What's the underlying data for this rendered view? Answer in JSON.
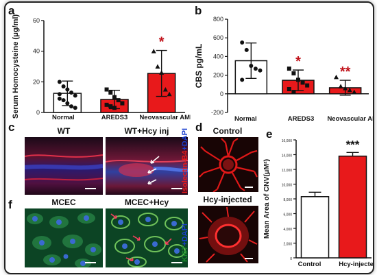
{
  "panels": {
    "a": "a",
    "b": "b",
    "c": "c",
    "d": "d",
    "e": "e",
    "f": "f"
  },
  "chart_data": [
    {
      "id": "a",
      "type": "bar",
      "ylabel": "Serum Homocysteine (μg/ml)",
      "ylim": [
        0,
        60
      ],
      "yticks": [
        0,
        20,
        40,
        60
      ],
      "categories": [
        "Normal",
        "AREDS3",
        "Neovascular AMD"
      ],
      "values": [
        12.5,
        8.5,
        25.5
      ],
      "errors": [
        8,
        6,
        15
      ],
      "colors": [
        "#ffffff",
        "#e8191b",
        "#e8191b"
      ],
      "significance": [
        "",
        "",
        "*"
      ],
      "points": [
        [
          20,
          17,
          15,
          13,
          11,
          9,
          8,
          6,
          4,
          3,
          12
        ],
        [
          15,
          13,
          10,
          8,
          6,
          5,
          4,
          3
        ],
        [
          40,
          30,
          26,
          15,
          12
        ]
      ]
    },
    {
      "id": "b",
      "type": "bar",
      "ylabel": "CBS pg/mL",
      "ylim": [
        -200,
        800
      ],
      "yticks": [
        -200,
        0,
        200,
        400,
        600,
        800
      ],
      "categories": [
        "Normal",
        "AREDS3",
        "Neovascular AMD"
      ],
      "values": [
        355,
        145,
        65
      ],
      "errors": [
        190,
        110,
        80
      ],
      "colors": [
        "#ffffff",
        "#e8191b",
        "#e8191b"
      ],
      "significance": [
        "",
        "*",
        "**"
      ],
      "points": [
        [
          550,
          470,
          300,
          270,
          250,
          150
        ],
        [
          270,
          220,
          150,
          120,
          90,
          50,
          20
        ],
        [
          180,
          80,
          60,
          40,
          20
        ]
      ]
    },
    {
      "id": "e",
      "type": "bar",
      "ylabel": "Mean Area of CNV(μM²)",
      "ylim": [
        0,
        16000
      ],
      "yticks": [
        "0",
        "2,000",
        "4,000",
        "6,000",
        "8,000",
        "10,000",
        "12,000",
        "14,000",
        "16,000"
      ],
      "yticks_num": [
        0,
        2000,
        4000,
        6000,
        8000,
        10000,
        12000,
        14000,
        16000
      ],
      "categories": [
        "Control",
        "Hcy-injected"
      ],
      "values": [
        8300,
        13800
      ],
      "errors": [
        600,
        500
      ],
      "colors": [
        "#ffffff",
        "#e8191b"
      ],
      "significance": [
        "",
        "***"
      ]
    }
  ],
  "micrographs": {
    "c_left_title": "WT",
    "c_right_title": "WT+Hcy inj",
    "c_stain_a": "Isolectin-B4",
    "c_stain_b": "+DAPI",
    "d_top_title": "Control",
    "d_bottom_title": "Hcy-injected",
    "f_left_title": "MCEC",
    "f_right_title": "MCEC+Hcy",
    "f_stain_a": "Ki67",
    "f_stain_b": "+DAPI"
  }
}
